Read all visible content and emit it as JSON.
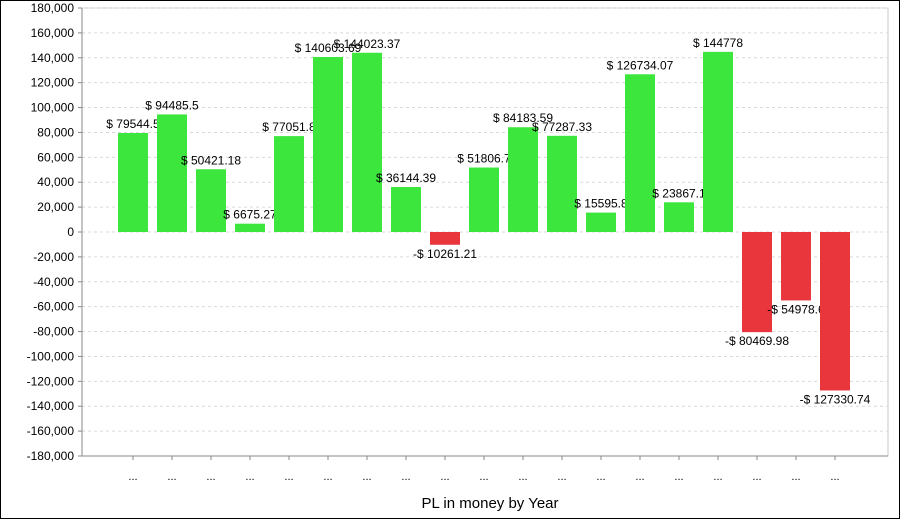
{
  "chart_data": {
    "type": "bar",
    "title": "",
    "xlabel": "PL in money by Year",
    "ylabel": "",
    "ylim": [
      -180000,
      180000
    ],
    "yticks": [
      180000,
      160000,
      140000,
      120000,
      100000,
      80000,
      60000,
      40000,
      20000,
      0,
      -20000,
      -40000,
      -60000,
      -80000,
      -100000,
      -120000,
      -140000,
      -160000,
      -180000
    ],
    "ytick_labels": [
      "180,000",
      "160,000",
      "140,000",
      "120,000",
      "100,000",
      "80,000",
      "60,000",
      "40,000",
      "20,000",
      "0",
      "-20,000",
      "-40,000",
      "-60,000",
      "-80,000",
      "-100,000",
      "-120,000",
      "-140,000",
      "-160,000",
      "-180,000"
    ],
    "grid": true,
    "categories": [
      "...",
      "...",
      "...",
      "...",
      "...",
      "...",
      "...",
      "...",
      "...",
      "...",
      "...",
      "...",
      "...",
      "...",
      "...",
      "...",
      "...",
      "...",
      "..."
    ],
    "values": [
      79544.5,
      94485.5,
      50421.18,
      6675.27,
      77051.8,
      140603.69,
      144023.37,
      36144.39,
      -10261.21,
      51806.7,
      84183.59,
      77287.33,
      15595.8,
      126734.07,
      23867.1,
      144778,
      -80469.98,
      -54978.6,
      -127330.74
    ],
    "data_labels": [
      "$ 79544.5",
      "$ 94485.5",
      "$ 50421.18",
      "$ 6675.27",
      "$ 77051.8",
      "$ 140603.69",
      "$ 144023.37",
      "$ 36144.39",
      "-$ 10261.21",
      "$ 51806.7",
      "$ 84183.59",
      "$ 77287.33",
      "$ 15595.8",
      "$ 126734.07",
      "$ 23867.1",
      "$ 144778",
      "-$ 80469.98",
      "-$ 54978.6",
      "-$ 127330.74"
    ],
    "colors": {
      "positive": "#3ce63c",
      "negative": "#e8363c",
      "grid": "#d9d9d9",
      "axis": "#888888"
    }
  }
}
